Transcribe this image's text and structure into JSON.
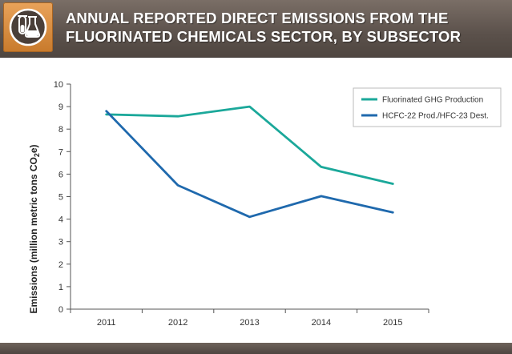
{
  "header": {
    "title_line1": "ANNUAL REPORTED DIRECT EMISSIONS FROM THE",
    "title_line2": "FLUORINATED CHEMICALS SECTOR, BY SUBSECTOR",
    "icon": "chemistry-flasks-icon"
  },
  "colors": {
    "series1": "#1ba89a",
    "series2": "#1f69ad",
    "badge": "#d98a3a",
    "header": "#5f554f"
  },
  "chart_data": {
    "type": "line",
    "x": [
      "2011",
      "2012",
      "2013",
      "2014",
      "2015"
    ],
    "series": [
      {
        "name": "Fluorinated GHG Production",
        "values": [
          8.65,
          8.57,
          9.0,
          6.32,
          5.57
        ],
        "color": "#1ba89a"
      },
      {
        "name": "HCFC-22 Prod./HFC-23 Dest.",
        "values": [
          8.8,
          5.5,
          4.1,
          5.02,
          4.3
        ],
        "color": "#1f69ad"
      }
    ],
    "ylabel_main": "Emissions (million metric tons CO",
    "ylabel_sub": "2",
    "ylabel_end": "e)",
    "ylim": [
      0,
      10
    ],
    "yticks": [
      0,
      1,
      2,
      3,
      4,
      5,
      6,
      7,
      8,
      9,
      10
    ],
    "grid": false,
    "legend": "top-right"
  }
}
